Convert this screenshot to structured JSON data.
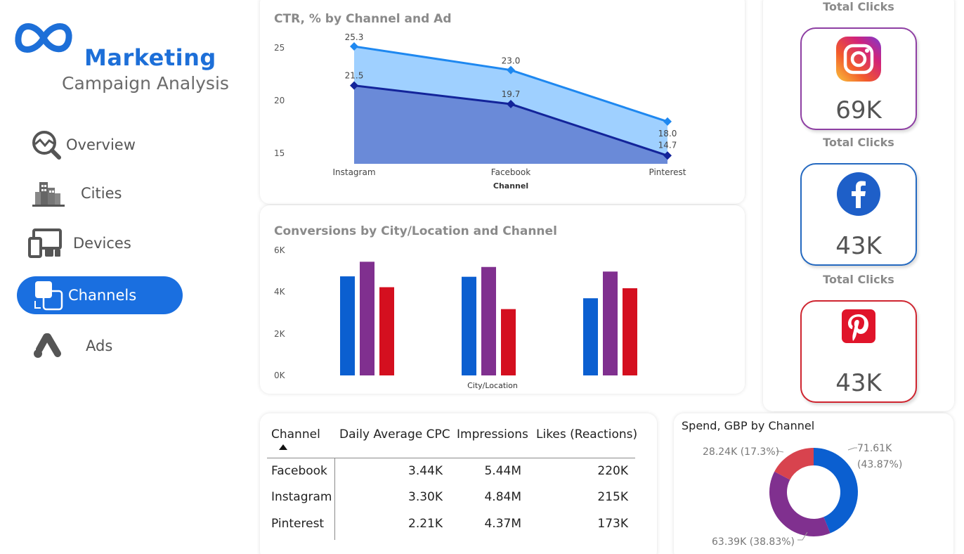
{
  "brand": {
    "title": "Marketing",
    "subtitle": "Campaign Analysis",
    "logo_icon": "meta-infinity-logo"
  },
  "nav": [
    {
      "label": "Overview",
      "icon": "chart-magnifier-icon"
    },
    {
      "label": "Cities",
      "icon": "city-buildings-icon"
    },
    {
      "label": "Devices",
      "icon": "devices-icon"
    },
    {
      "label": "Channels",
      "icon": "channels-icon",
      "active": true
    },
    {
      "label": "Ads",
      "icon": "google-ads-icon"
    }
  ],
  "colors": {
    "accent": "#1a6fe0",
    "facebook": "#0b5fd0",
    "instagram": "#80308f",
    "pinterest": "#d40f1f",
    "ctr_upper": "#9fd0ff",
    "ctr_lower": "#6a8ad8"
  },
  "ctr_chart": {
    "title": "CTR, % by Channel and Ad",
    "xlabel": "Channel",
    "chart_data": {
      "type": "area",
      "categories": [
        "Instagram",
        "Facebook",
        "Pinterest"
      ],
      "series": [
        {
          "values": [
            25.3,
            23.0,
            18.0
          ]
        },
        {
          "values": [
            21.5,
            19.7,
            14.7
          ]
        }
      ],
      "value_labels": [
        [
          "25.3",
          "23.0",
          "18.0"
        ],
        [
          "21.5",
          "19.7",
          "14.7"
        ]
      ],
      "yticks": [
        "25",
        "20",
        "15"
      ],
      "ylim": [
        13.9,
        26.8
      ]
    }
  },
  "conv_chart": {
    "title": "Conversions by City/Location and Channel",
    "xlabel": "City/Location",
    "chart_data": {
      "type": "bar",
      "groups": 3,
      "series": [
        {
          "color": "#0b5fd0",
          "values": [
            4750,
            4730,
            3700
          ]
        },
        {
          "color": "#80308f",
          "values": [
            5450,
            5200,
            4980
          ]
        },
        {
          "color": "#d40f1f",
          "values": [
            4230,
            3180,
            4180
          ]
        }
      ],
      "yticks": [
        "6K",
        "4K",
        "2K",
        "0K"
      ],
      "ylim": [
        0,
        6000
      ]
    }
  },
  "total_clicks": [
    {
      "label": "Total Clicks",
      "value": "69K",
      "icon": "instagram-icon",
      "color": "#8e3fa3"
    },
    {
      "label": "Total Clicks",
      "value": "43K",
      "icon": "facebook-icon",
      "color": "#2469c0"
    },
    {
      "label": "Total Clicks",
      "value": "43K",
      "icon": "pinterest-icon",
      "color": "#cf2530"
    }
  ],
  "table": {
    "headers": [
      "Channel",
      "Daily Average CPC",
      "Impressions",
      "Likes (Reactions)"
    ],
    "rows": [
      [
        "Facebook",
        "3.44K",
        "5.44M",
        "220K"
      ],
      [
        "Instagram",
        "3.30K",
        "4.84M",
        "215K"
      ],
      [
        "Pinterest",
        "2.21K",
        "4.37M",
        "173K"
      ]
    ]
  },
  "spend_chart": {
    "title": "Spend, GBP by Channel",
    "chart_data": {
      "type": "pie",
      "slices": [
        {
          "value": 71.61,
          "percent": 43.87,
          "color": "#0b5fd0"
        },
        {
          "value": 63.39,
          "percent": 38.83,
          "color": "#80308f"
        },
        {
          "value": 28.24,
          "percent": 17.3,
          "color": "#d8434e"
        }
      ],
      "labels": [
        "71.61K",
        "(43.87%)",
        "63.39K (38.83%)",
        "28.24K (17.3%)"
      ]
    }
  }
}
